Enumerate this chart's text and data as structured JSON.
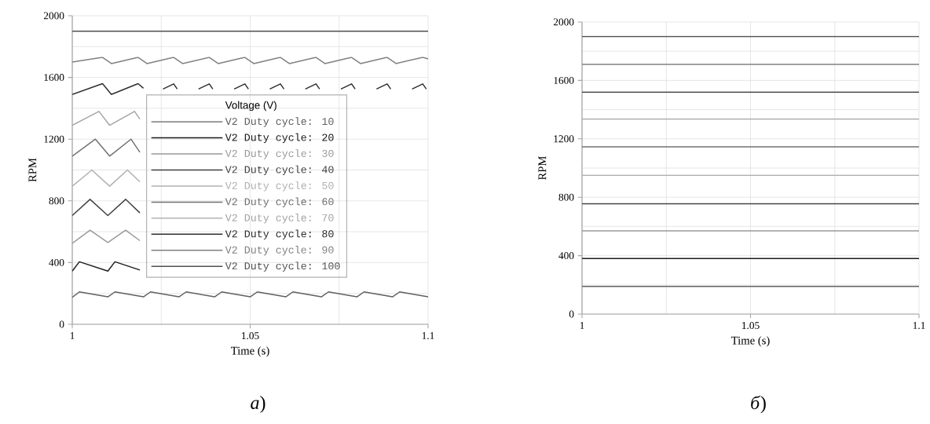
{
  "chart_data": [
    {
      "type": "line",
      "xlabel": "Time (s)",
      "ylabel": "RPM",
      "legend_title": "Voltage (V)",
      "legend": "right",
      "grid": true,
      "xlim": [
        1,
        1.1
      ],
      "ylim": [
        0,
        2000
      ],
      "xticks": [
        1,
        1.05,
        1.1
      ],
      "yticks": [
        0,
        400,
        800,
        1200,
        1600,
        2000
      ],
      "annotations": [
        "*a*)"
      ],
      "series": [
        {
          "name": "V2 Duty cycle: 10",
          "color": "#606060",
          "x": [
            1,
            1.002,
            1.01,
            1.012,
            1.02,
            1.022,
            1.03,
            1.032,
            1.04,
            1.042,
            1.05,
            1.052,
            1.06,
            1.062,
            1.07,
            1.072,
            1.08,
            1.082,
            1.09,
            1.092,
            1.1
          ],
          "values": [
            175,
            210,
            178,
            210,
            178,
            210,
            178,
            210,
            178,
            210,
            178,
            210,
            178,
            210,
            178,
            210,
            178,
            210,
            178,
            210,
            178
          ]
        },
        {
          "name": "V2 Duty cycle: 20",
          "color": "#1c1c1c",
          "x": [
            1,
            1.002,
            1.01,
            1.012,
            1.019
          ],
          "values": [
            345,
            405,
            345,
            405,
            352
          ]
        },
        {
          "name": "V2 Duty cycle: 30",
          "color": "#999999",
          "x": [
            1,
            1.005,
            1.01,
            1.015,
            1.019
          ],
          "values": [
            525,
            610,
            530,
            610,
            542
          ]
        },
        {
          "name": "V2 Duty cycle: 40",
          "color": "#404040",
          "x": [
            1,
            1.005,
            1.01,
            1.015,
            1.019
          ],
          "values": [
            705,
            810,
            705,
            810,
            722
          ]
        },
        {
          "name": "V2 Duty cycle: 50",
          "color": "#b0b0b0",
          "x": [
            1,
            1.0055,
            1.0105,
            1.0155,
            1.019
          ],
          "values": [
            895,
            1000,
            895,
            1000,
            924
          ]
        },
        {
          "name": "V2 Duty cycle: 60",
          "color": "#707070",
          "x": [
            1,
            1.0065,
            1.0105,
            1.0165,
            1.019
          ],
          "values": [
            1090,
            1200,
            1090,
            1200,
            1115
          ]
        },
        {
          "name": "V2 Duty cycle: 70",
          "color": "#a4a4a4",
          "x": [
            1,
            1.0075,
            1.0105,
            1.0175,
            1.019
          ],
          "values": [
            1290,
            1380,
            1290,
            1380,
            1330
          ]
        },
        {
          "name": "V2 Duty cycle: 80",
          "color": "#2e2e2e",
          "x": [
            1,
            1.0085,
            1.011,
            1.0185,
            1.02,
            1.021,
            1.0255,
            1.0285,
            1.0295,
            1.03,
            1.0355,
            1.0385,
            1.0395,
            1.04,
            1.0455,
            1.0485,
            1.0495,
            1.05,
            1.0555,
            1.0585,
            1.0595,
            1.06,
            1.0655,
            1.0685,
            1.0695,
            1.07,
            1.0755,
            1.0785,
            1.0795,
            1.08,
            1.0855,
            1.0885,
            1.0895,
            1.09,
            1.0955,
            1.0985,
            1.0995
          ],
          "values": [
            1490,
            1560,
            1490,
            1560,
            1530,
            null,
            1525,
            1558,
            1525,
            null,
            1525,
            1558,
            1525,
            null,
            1525,
            1558,
            1525,
            null,
            1525,
            1558,
            1525,
            null,
            1525,
            1558,
            1525,
            null,
            1525,
            1558,
            1525,
            null,
            1525,
            1558,
            1525,
            null,
            1525,
            1558,
            1525
          ]
        },
        {
          "name": "V2 Duty cycle: 90",
          "color": "#808080",
          "x": [
            1,
            1.0085,
            1.011,
            1.0185,
            1.021,
            1.0285,
            1.031,
            1.0385,
            1.041,
            1.0485,
            1.051,
            1.0585,
            1.061,
            1.0685,
            1.071,
            1.0785,
            1.081,
            1.0885,
            1.091,
            1.0985,
            1.1
          ],
          "values": [
            1700,
            1730,
            1690,
            1730,
            1690,
            1730,
            1690,
            1730,
            1690,
            1730,
            1690,
            1730,
            1690,
            1730,
            1690,
            1730,
            1690,
            1730,
            1690,
            1730,
            1720
          ]
        },
        {
          "name": "V2 Duty cycle: 100",
          "color": "#505050",
          "x": [
            1,
            1.1
          ],
          "values": [
            1900,
            1900
          ]
        }
      ]
    },
    {
      "type": "line",
      "xlabel": "Time (s)",
      "ylabel": "RPM",
      "grid": true,
      "xlim": [
        1,
        1.1
      ],
      "ylim": [
        0,
        2000
      ],
      "xticks": [
        1,
        1.05,
        1.1
      ],
      "yticks": [
        0,
        400,
        800,
        1200,
        1600,
        2000
      ],
      "annotations": [
        "*б*)"
      ],
      "series": [
        {
          "color": "#606060",
          "x": [
            1,
            1.1
          ],
          "values": [
            190,
            190
          ]
        },
        {
          "color": "#1c1c1c",
          "x": [
            1,
            1.1
          ],
          "values": [
            380,
            380
          ]
        },
        {
          "color": "#999999",
          "x": [
            1,
            1.1
          ],
          "values": [
            570,
            570
          ]
        },
        {
          "color": "#404040",
          "x": [
            1,
            1.1
          ],
          "values": [
            755,
            755
          ]
        },
        {
          "color": "#b0b0b0",
          "x": [
            1,
            1.1
          ],
          "values": [
            950,
            950
          ]
        },
        {
          "color": "#707070",
          "x": [
            1,
            1.1
          ],
          "values": [
            1145,
            1145
          ]
        },
        {
          "color": "#a4a4a4",
          "x": [
            1,
            1.1
          ],
          "values": [
            1335,
            1335
          ]
        },
        {
          "color": "#2e2e2e",
          "x": [
            1,
            1.1
          ],
          "values": [
            1520,
            1520
          ]
        },
        {
          "color": "#808080",
          "x": [
            1,
            1.1
          ],
          "values": [
            1710,
            1710
          ]
        },
        {
          "color": "#505050",
          "x": [
            1,
            1.1
          ],
          "values": [
            1900,
            1900
          ]
        }
      ]
    }
  ]
}
